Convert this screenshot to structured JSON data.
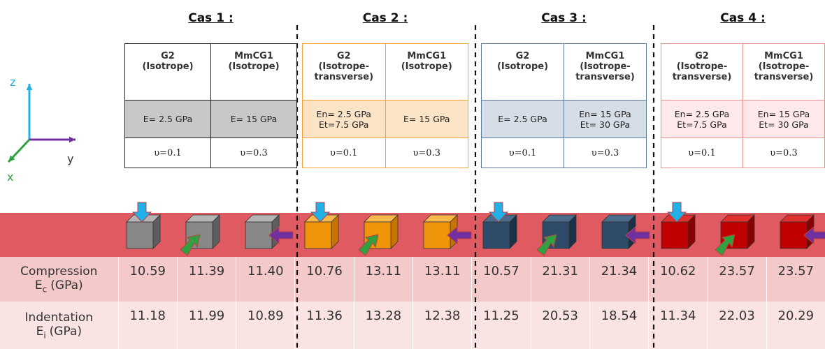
{
  "axes": {
    "z": "z",
    "y": "y",
    "x": "x"
  },
  "cases": [
    {
      "title": "Cas 1 :",
      "materials": [
        {
          "name": "G2",
          "type": "(Isotrope)",
          "modulus": [
            "E= 2.5 GPa"
          ],
          "poisson": "υ=0.1"
        },
        {
          "name": "MmCG1",
          "type": "(Isotrope)",
          "modulus": [
            "E= 15 GPa"
          ],
          "poisson": "υ=0.3"
        }
      ]
    },
    {
      "title": "Cas 2 :",
      "materials": [
        {
          "name": "G2",
          "type": "(Isotrope-transverse)",
          "modulus": [
            "En= 2.5 GPa",
            "Et=7.5 GPa"
          ],
          "poisson": "υ=0.1"
        },
        {
          "name": "MmCG1",
          "type": "(Isotrope)",
          "modulus": [
            "E= 15 GPa"
          ],
          "poisson": "υ=0.3"
        }
      ]
    },
    {
      "title": "Cas 3 :",
      "materials": [
        {
          "name": "G2",
          "type": "(Isotrope)",
          "modulus": [
            "E= 2.5 GPa"
          ],
          "poisson": "υ=0.1"
        },
        {
          "name": "MmCG1",
          "type": "(Isotrope-transverse)",
          "modulus": [
            "En= 15 GPa",
            "Et= 30 GPa"
          ],
          "poisson": "υ=0.3"
        }
      ]
    },
    {
      "title": "Cas 4 :",
      "materials": [
        {
          "name": "G2",
          "type": "(Isotrope-transverse)",
          "modulus": [
            "En= 2.5 GPa",
            "Et=7.5 GPa"
          ],
          "poisson": "υ=0.1"
        },
        {
          "name": "MmCG1",
          "type": "(Isotrope-transverse)",
          "modulus": [
            "En= 15 GPa",
            "Et= 30 GPa"
          ],
          "poisson": "υ=0.3"
        }
      ]
    }
  ],
  "rows": [
    {
      "label": "Compression",
      "symbol": "E",
      "subscript": "c",
      "unit": "(GPa)",
      "values": [
        "10.59",
        "11.39",
        "11.40",
        "10.76",
        "13.11",
        "13.11",
        "10.57",
        "21.31",
        "21.34",
        "10.62",
        "23.57",
        "23.57"
      ]
    },
    {
      "label": "Indentation",
      "symbol": "E",
      "subscript": "i",
      "unit": "(GPa)",
      "values": [
        "11.18",
        "11.99",
        "10.89",
        "11.36",
        "13.28",
        "12.38",
        "11.25",
        "20.53",
        "18.54",
        "11.34",
        "22.03",
        "20.29"
      ]
    }
  ]
}
